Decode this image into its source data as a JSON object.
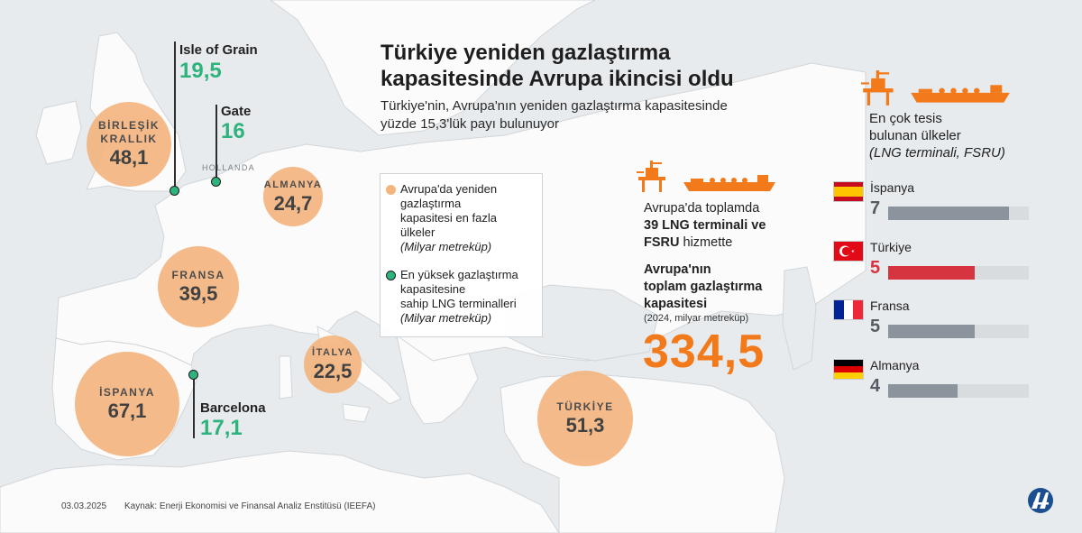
{
  "header": {
    "title_line1": "Türkiye yeniden gazlaştırma",
    "title_line2": "kapasitesinde Avrupa ikincisi oldu",
    "subtitle_line1": "Türkiye'nin, Avrupa'nın yeniden gazlaştırma kapasitesinde",
    "subtitle_line2": "yüzde 15,3'lük payı bulunuyor"
  },
  "map_labels": {
    "holland": "HOLLANDA"
  },
  "capacity_bubbles": [
    {
      "name1": "BİRLEŞİK",
      "name2": "KRALLIK",
      "value": "48,1"
    },
    {
      "name1": "ALMANYA",
      "name2": "",
      "value": "24,7"
    },
    {
      "name1": "FRANSA",
      "name2": "",
      "value": "39,5"
    },
    {
      "name1": "İSPANYA",
      "name2": "",
      "value": "67,1"
    },
    {
      "name1": "İTALYA",
      "name2": "",
      "value": "22,5"
    },
    {
      "name1": "TÜRKİYE",
      "name2": "",
      "value": "51,3"
    }
  ],
  "terminals": [
    {
      "name": "Isle of Grain",
      "value": "19,5"
    },
    {
      "name": "Gate",
      "value": "16"
    },
    {
      "name": "Barcelona",
      "value": "17,1"
    }
  ],
  "legend": {
    "item1_line1": "Avrupa'da yeniden",
    "item1_line2": "gazlaştırma",
    "item1_line3": "kapasitesi en fazla",
    "item1_line4": "ülkeler",
    "item1_unit": "(Milyar metreküp)",
    "item2_line1": "En yüksek gazlaştırma",
    "item2_line2": "kapasitesine",
    "item2_line3": "sahip LNG terminalleri",
    "item2_unit": "(Milyar metreküp)",
    "item1_color": "#f4b47e",
    "item2_color": "#2fb37c"
  },
  "europe_panel": {
    "line1": "Avrupa'da toplamda",
    "line2_bold": "39 LNG terminali ve",
    "line3_bold": "FSRU",
    "line3_rest": " hizmette",
    "cap_line1": "Avrupa'nın",
    "cap_line2": "toplam gazlaştırma",
    "cap_line3": "kapasitesi",
    "cap_unit": "(2024, milyar metreküp)",
    "total": "334,5"
  },
  "ranking": {
    "title_line1": "En çok tesis",
    "title_line2": "bulunan ülkeler",
    "title_line3": "(LNG terminali, FSRU)",
    "max": 7,
    "rows": [
      {
        "country": "İspanya",
        "value": 7,
        "label": "7",
        "flag": "spain-flag",
        "color": "#8b949c"
      },
      {
        "country": "Türkiye",
        "value": 5,
        "label": "5",
        "flag": "turkey-flag",
        "color": "#d6353f"
      },
      {
        "country": "Fransa",
        "value": 5,
        "label": "5",
        "flag": "france-flag",
        "color": "#8b949c"
      },
      {
        "country": "Almanya",
        "value": 4,
        "label": "4",
        "flag": "germany-flag",
        "color": "#8b949c"
      }
    ]
  },
  "footer": {
    "date": "03.03.2025",
    "source": "Kaynak: Enerji Ekonomisi ve Finansal Analiz Enstitüsü (IEEFA)"
  },
  "colors": {
    "accent_orange": "#f27a1b",
    "bubble": "#f4b47e",
    "terminal_green": "#2fb37c",
    "turkey_red": "#d6353f"
  }
}
